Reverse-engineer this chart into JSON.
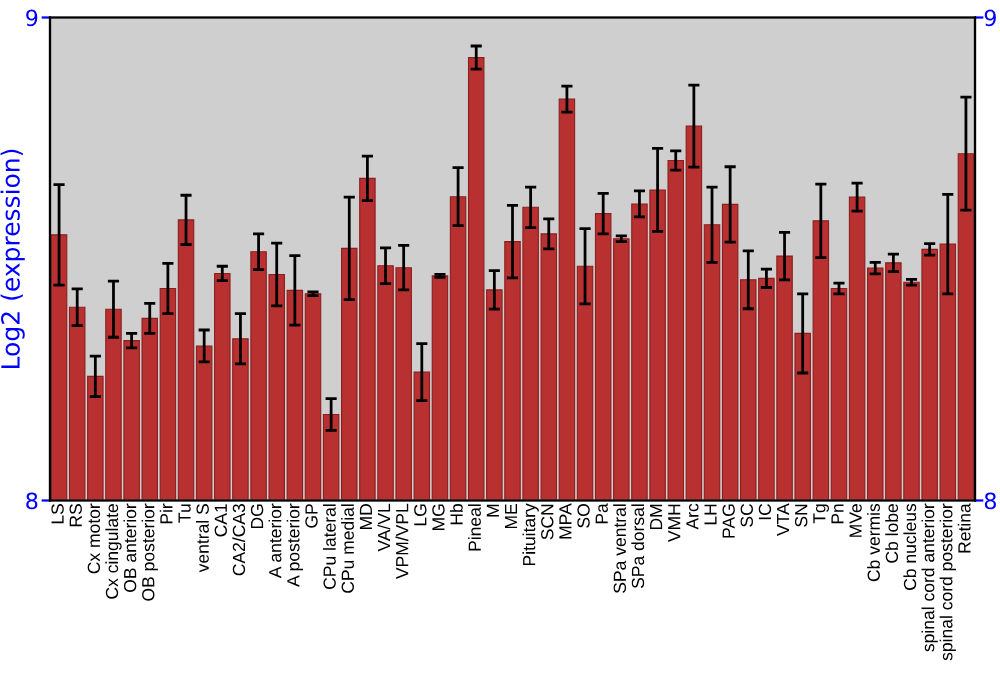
{
  "chart_data": {
    "type": "bar",
    "ylabel": "Log2 (expression)",
    "categories": [
      "LS",
      "RS",
      "Cx motor",
      "Cx cingulate",
      "OB anterior",
      "OB posterior",
      "Pir",
      "Tu",
      "ventral S",
      "CA1",
      "CA2/CA3",
      "DG",
      "A anterior",
      "A posterior",
      "GP",
      "CPu lateral",
      "CPu medial",
      "MD",
      "VA/VL",
      "VPM/VPL",
      "LG",
      "MG",
      "Hb",
      "Pineal",
      "M",
      "ME",
      "Pituitary",
      "SCN",
      "MPA",
      "SO",
      "Pa",
      "SPa ventral",
      "SPa dorsal",
      "DM",
      "VMH",
      "Arc",
      "LH",
      "PAG",
      "SC",
      "IC",
      "VTA",
      "SN",
      "Tg",
      "Pn",
      "MVe",
      "Cb vermis",
      "Cb lobe",
      "Cb nucleus",
      "spinal cord anterior",
      "spinal cord posterior",
      "Retina"
    ],
    "series": [
      {
        "color": "#b8302f",
        "values": [
          8.55,
          8.4,
          8.257,
          8.396,
          8.331,
          8.377,
          8.439,
          8.581,
          8.32,
          8.47,
          8.335,
          8.515,
          8.468,
          8.435,
          8.428,
          8.178,
          8.522,
          8.667,
          8.486,
          8.482,
          8.266,
          8.465,
          8.629,
          8.917,
          8.436,
          8.536,
          8.607,
          8.552,
          8.831,
          8.485,
          8.594,
          8.542,
          8.614,
          8.643,
          8.704,
          8.775,
          8.571,
          8.613,
          8.457,
          8.46,
          8.506,
          8.346,
          8.579,
          8.439,
          8.628,
          8.481,
          8.492,
          8.452,
          8.52,
          8.531,
          8.718
        ],
        "errors": [
          0.104,
          0.038,
          0.042,
          0.058,
          0.015,
          0.031,
          0.052,
          0.051,
          0.033,
          0.015,
          0.052,
          0.037,
          0.065,
          0.072,
          0.004,
          0.033,
          0.106,
          0.046,
          0.037,
          0.046,
          0.059,
          0.003,
          0.06,
          0.024,
          0.04,
          0.075,
          0.042,
          0.031,
          0.027,
          0.078,
          0.042,
          0.006,
          0.027,
          0.086,
          0.02,
          0.085,
          0.078,
          0.078,
          0.06,
          0.019,
          0.049,
          0.082,
          0.076,
          0.011,
          0.029,
          0.012,
          0.018,
          0.006,
          0.012,
          0.103,
          0.117
        ]
      }
    ],
    "ylim": [
      8,
      9
    ],
    "yticks": [
      8,
      9
    ],
    "y2lim": [
      8,
      9
    ],
    "y2ticks": [
      8,
      9
    ],
    "grid": false,
    "legend": false
  }
}
